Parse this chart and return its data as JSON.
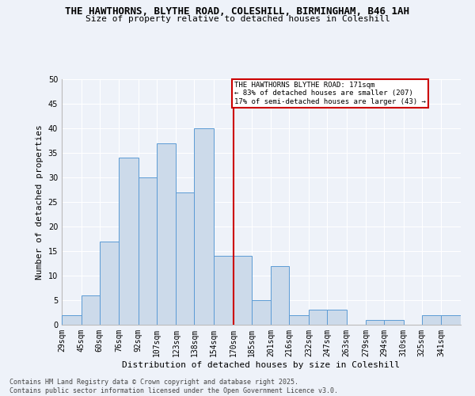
{
  "title_line1": "THE HAWTHORNS, BLYTHE ROAD, COLESHILL, BIRMINGHAM, B46 1AH",
  "title_line2": "Size of property relative to detached houses in Coleshill",
  "xlabel": "Distribution of detached houses by size in Coleshill",
  "ylabel": "Number of detached properties",
  "footer": "Contains HM Land Registry data © Crown copyright and database right 2025.\nContains public sector information licensed under the Open Government Licence v3.0.",
  "bin_labels": [
    "29sqm",
    "45sqm",
    "60sqm",
    "76sqm",
    "92sqm",
    "107sqm",
    "123sqm",
    "138sqm",
    "154sqm",
    "170sqm",
    "185sqm",
    "201sqm",
    "216sqm",
    "232sqm",
    "247sqm",
    "263sqm",
    "279sqm",
    "294sqm",
    "310sqm",
    "325sqm",
    "341sqm"
  ],
  "bar_values": [
    2,
    6,
    17,
    34,
    30,
    37,
    27,
    40,
    14,
    14,
    5,
    12,
    2,
    3,
    3,
    0,
    1,
    1,
    0,
    2,
    2
  ],
  "bar_color": "#ccdaea",
  "bar_edge_color": "#5b9bd5",
  "vline_x": 170,
  "vline_color": "#cc0000",
  "annotation_text": "THE HAWTHORNS BLYTHE ROAD: 171sqm\n← 83% of detached houses are smaller (207)\n17% of semi-detached houses are larger (43) →",
  "annotation_box_color": "#cc0000",
  "ylim": [
    0,
    50
  ],
  "yticks": [
    0,
    5,
    10,
    15,
    20,
    25,
    30,
    35,
    40,
    45,
    50
  ],
  "bin_edges": [
    29,
    45,
    60,
    76,
    92,
    107,
    123,
    138,
    154,
    170,
    185,
    201,
    216,
    232,
    247,
    263,
    279,
    294,
    310,
    325,
    341,
    357
  ],
  "bg_color": "#eef2f9",
  "plot_bg_color": "#eef2f9",
  "grid_color": "#ffffff",
  "title_fontsize": 9,
  "subtitle_fontsize": 8,
  "ylabel_fontsize": 8,
  "xlabel_fontsize": 8,
  "tick_fontsize": 7,
  "footer_fontsize": 6
}
